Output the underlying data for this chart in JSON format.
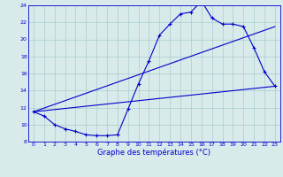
{
  "title": "Graphe des températures (°C)",
  "bg_color": "#d8eaea",
  "grid_color": "#aacccc",
  "line_color": "#0000cc",
  "x_min": 0,
  "x_max": 23,
  "y_min": 8,
  "y_max": 24,
  "hourly_temps": [
    11.5,
    11.0,
    10.0,
    9.5,
    9.2,
    8.8,
    8.7,
    8.7,
    8.8,
    11.8,
    14.8,
    17.5,
    20.5,
    21.8,
    23.0,
    23.2,
    24.5,
    22.5,
    21.8,
    21.8,
    21.5,
    19.0,
    16.2,
    14.5
  ],
  "trend1_x": [
    0,
    23
  ],
  "trend1_y": [
    11.5,
    21.5
  ],
  "trend2_x": [
    0,
    23
  ],
  "trend2_y": [
    11.5,
    14.5
  ]
}
